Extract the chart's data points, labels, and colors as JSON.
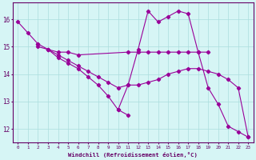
{
  "x_hours": [
    0,
    1,
    2,
    3,
    4,
    5,
    6,
    7,
    8,
    9,
    10,
    11,
    12,
    13,
    14,
    15,
    16,
    17,
    18,
    19,
    20,
    21,
    22,
    23
  ],
  "line_A": [
    15.9,
    15.5,
    15.1,
    null,
    null,
    null,
    null,
    null,
    null,
    null,
    null,
    null,
    null,
    null,
    null,
    null,
    null,
    null,
    null,
    null,
    null,
    null,
    null,
    null
  ],
  "line_B": [
    null,
    null,
    15.1,
    14.9,
    14.6,
    14.4,
    14.2,
    13.9,
    13.6,
    13.2,
    12.7,
    12.5,
    null,
    null,
    null,
    null,
    null,
    null,
    null,
    null,
    null,
    null,
    null,
    null
  ],
  "line_C": [
    null,
    null,
    15.0,
    14.9,
    14.7,
    14.5,
    14.3,
    14.1,
    13.9,
    13.7,
    13.5,
    13.6,
    13.6,
    13.7,
    13.8,
    14.0,
    14.1,
    14.2,
    14.2,
    14.1,
    14.0,
    13.8,
    13.5,
    11.7
  ],
  "line_D": [
    null,
    null,
    null,
    14.9,
    14.8,
    14.8,
    14.7,
    null,
    null,
    null,
    null,
    14.8,
    14.8,
    14.8,
    14.8,
    14.8,
    14.8,
    14.8,
    14.8,
    14.8,
    null,
    null,
    null,
    null
  ],
  "line_E": [
    null,
    null,
    null,
    null,
    null,
    null,
    null,
    null,
    null,
    null,
    12.7,
    13.6,
    14.9,
    16.3,
    15.9,
    16.1,
    16.3,
    16.2,
    14.8,
    13.5,
    12.9,
    12.1,
    11.9,
    11.7
  ],
  "bg_color": "#d6f5f5",
  "grid_color": "#aadddd",
  "line_color": "#990099",
  "xlabel": "Windchill (Refroidissement éolien,°C)",
  "xlabel_color": "#660066",
  "tick_color": "#660066",
  "ylim": [
    11.5,
    16.6
  ],
  "xlim": [
    -0.5,
    23.5
  ]
}
